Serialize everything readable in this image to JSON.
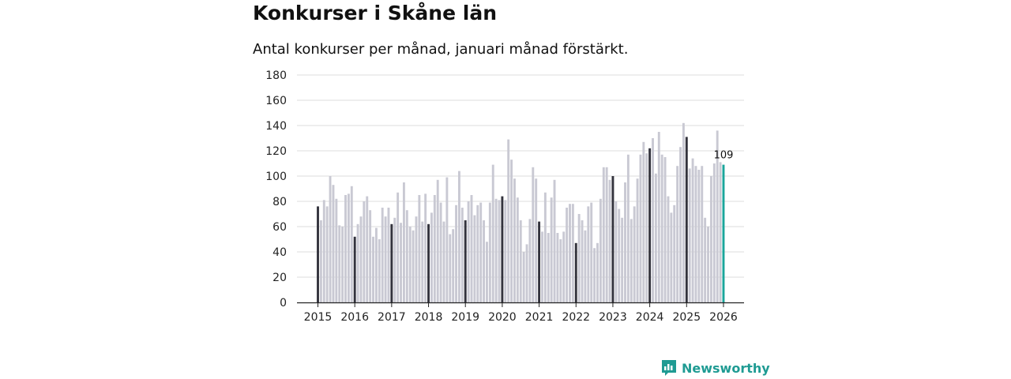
{
  "title": "Konkurser i Skåne län",
  "subtitle": "Antal konkurser per månad, januari månad förstärkt.",
  "brand": {
    "name": "Newsworthy",
    "icon": "newsworthy-logo-icon"
  },
  "colors": {
    "normal": "#c9c9d3",
    "january": "#33333d",
    "latest": "#1aa69b",
    "grid": "#dedede",
    "axis": "#222222"
  },
  "chart_data": {
    "type": "bar",
    "title": "Konkurser i Skåne län",
    "subtitle": "Antal konkurser per månad, januari månad förstärkt.",
    "xlabel": "",
    "ylabel": "",
    "ylim": [
      0,
      180
    ],
    "yticks": [
      0,
      20,
      40,
      60,
      80,
      100,
      120,
      140,
      160,
      180
    ],
    "grid": true,
    "xtick_labels": [
      "2015",
      "2016",
      "2017",
      "2018",
      "2019",
      "2020",
      "2021",
      "2022",
      "2023",
      "2024",
      "2025",
      "2026"
    ],
    "start": "2015-01",
    "highlight": "January bars darker; latest month highlighted",
    "annotation": {
      "text": "109",
      "target": "last"
    },
    "values": [
      76,
      65,
      81,
      76,
      100,
      93,
      82,
      61,
      60,
      85,
      86,
      92,
      52,
      62,
      68,
      80,
      84,
      73,
      52,
      59,
      50,
      75,
      68,
      75,
      62,
      67,
      87,
      63,
      95,
      73,
      60,
      57,
      68,
      85,
      64,
      86,
      62,
      71,
      85,
      97,
      79,
      64,
      99,
      54,
      58,
      77,
      104,
      75,
      65,
      80,
      85,
      69,
      77,
      79,
      65,
      48,
      79,
      109,
      82,
      81,
      84,
      81,
      129,
      113,
      98,
      83,
      65,
      40,
      46,
      66,
      107,
      98,
      64,
      56,
      87,
      55,
      83,
      97,
      55,
      50,
      56,
      75,
      78,
      78,
      47,
      70,
      65,
      57,
      76,
      79,
      43,
      47,
      82,
      107,
      107,
      97,
      100,
      80,
      74,
      67,
      95,
      117,
      66,
      76,
      98,
      117,
      127,
      118,
      122,
      130,
      102,
      135,
      117,
      115,
      84,
      71,
      77,
      108,
      123,
      142,
      131,
      106,
      114,
      108,
      105,
      108,
      67,
      60,
      100,
      110,
      136,
      111,
      109
    ]
  }
}
